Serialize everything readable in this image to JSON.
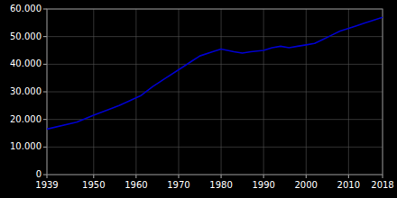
{
  "chart_data": {
    "type": "line",
    "x": [
      1939,
      1946,
      1950,
      1956,
      1961,
      1964,
      1967,
      1970,
      1973,
      1975,
      1978,
      1980,
      1983,
      1985,
      1987,
      1990,
      1992,
      1994,
      1996,
      1998,
      2000,
      2002,
      2004,
      2006,
      2008,
      2010,
      2012,
      2014,
      2016,
      2018
    ],
    "values": [
      16500,
      19000,
      21500,
      25000,
      28500,
      32000,
      35000,
      38000,
      41000,
      43000,
      44500,
      45500,
      44500,
      44000,
      44500,
      45000,
      46000,
      46500,
      46000,
      46500,
      47000,
      47500,
      49000,
      50500,
      52000,
      53000,
      54000,
      55000,
      56000,
      57000
    ],
    "color": "#0000cc",
    "xlim": [
      1939,
      2018
    ],
    "ylim": [
      0,
      60000
    ],
    "xticks": [
      1939,
      1950,
      1960,
      1970,
      1980,
      1990,
      2000,
      2010,
      2018
    ],
    "yticks": [
      0,
      {
        "value": 10000,
        "label": "10.000"
      },
      {
        "value": 20000,
        "label": "20.000"
      },
      {
        "value": 30000,
        "label": "30.000"
      },
      {
        "value": 40000,
        "label": "40.000"
      },
      {
        "value": 50000,
        "label": "50.000"
      },
      {
        "value": 60000,
        "label": "60.000"
      }
    ],
    "grid": true
  }
}
